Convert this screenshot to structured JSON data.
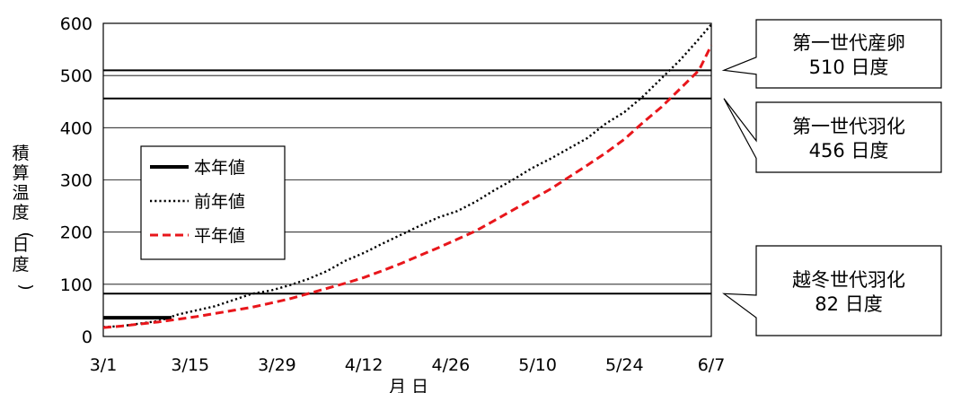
{
  "chart_data": {
    "type": "line",
    "xlabel": "月 日",
    "ylabel": "積算温度(日度)",
    "ylim": [
      0,
      600
    ],
    "yticks": [
      0,
      100,
      200,
      300,
      400,
      500,
      600
    ],
    "xticks": [
      "3/1",
      "3/15",
      "3/29",
      "4/12",
      "4/26",
      "5/10",
      "5/24",
      "6/7"
    ],
    "grid": true,
    "legend_position": "left-middle",
    "series": [
      {
        "name": "本年値",
        "style": "solid",
        "color": "#000000",
        "x": [
          "3/1",
          "3/2",
          "3/4",
          "3/6",
          "3/8",
          "3/10",
          "3/12"
        ],
        "y": [
          36,
          36,
          36,
          36,
          36,
          36,
          36
        ]
      },
      {
        "name": "前年値",
        "style": "dotted",
        "color": "#000000",
        "x": [
          "3/1",
          "3/4",
          "3/7",
          "3/10",
          "3/13",
          "3/16",
          "3/19",
          "3/22",
          "3/25",
          "3/28",
          "3/31",
          "4/3",
          "4/6",
          "4/9",
          "4/12",
          "4/15",
          "4/18",
          "4/21",
          "4/24",
          "4/27",
          "4/30",
          "5/3",
          "5/6",
          "5/9",
          "5/12",
          "5/15",
          "5/18",
          "5/21",
          "5/24",
          "5/27",
          "5/30",
          "6/2",
          "6/5",
          "6/7"
        ],
        "y": [
          18,
          20,
          25,
          30,
          42,
          50,
          58,
          70,
          82,
          88,
          98,
          110,
          125,
          145,
          160,
          178,
          195,
          212,
          228,
          240,
          258,
          280,
          300,
          322,
          340,
          360,
          380,
          408,
          430,
          460,
          495,
          530,
          570,
          598
        ]
      },
      {
        "name": "平年値",
        "style": "dashed",
        "color": "#e8161b",
        "x": [
          "3/1",
          "3/4",
          "3/7",
          "3/10",
          "3/13",
          "3/16",
          "3/19",
          "3/22",
          "3/25",
          "3/28",
          "3/31",
          "4/3",
          "4/6",
          "4/9",
          "4/12",
          "4/15",
          "4/18",
          "4/21",
          "4/24",
          "4/27",
          "4/30",
          "5/3",
          "5/6",
          "5/9",
          "5/12",
          "5/15",
          "5/18",
          "5/21",
          "5/24",
          "5/27",
          "5/30",
          "6/2",
          "6/5",
          "6/7"
        ],
        "y": [
          17,
          20,
          24,
          28,
          33,
          38,
          44,
          50,
          56,
          64,
          72,
          82,
          92,
          102,
          113,
          126,
          140,
          155,
          170,
          186,
          202,
          222,
          242,
          262,
          282,
          305,
          328,
          352,
          378,
          410,
          440,
          475,
          510,
          558
        ]
      }
    ],
    "reference_lines": [
      {
        "value": 510,
        "label_line1": "第一世代産卵",
        "label_line2": "510 日度"
      },
      {
        "value": 456,
        "label_line1": "第一世代羽化",
        "label_line2": "456 日度"
      },
      {
        "value": 82,
        "label_line1": "越冬世代羽化",
        "label_line2": "82 日度"
      }
    ]
  }
}
